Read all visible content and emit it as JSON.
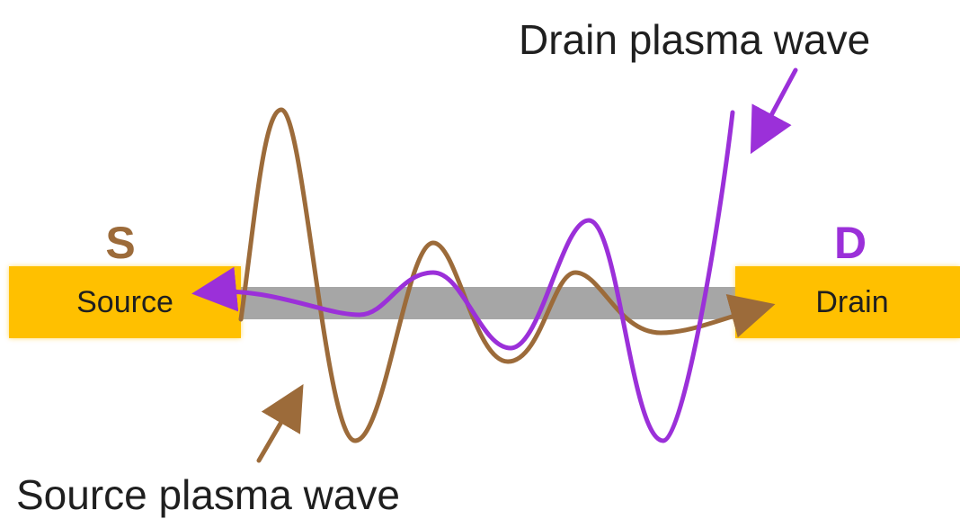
{
  "labels": {
    "drain_wave": "Drain plasma wave",
    "source_wave": "Source plasma wave",
    "source_letter": "S",
    "drain_letter": "D",
    "source_box": "Source",
    "drain_box": "Drain"
  },
  "colors": {
    "contact": "#ffc000",
    "channel": "#a6a6a6",
    "source_wave": "#9c6b3a",
    "drain_wave": "#9b30d9",
    "text": "#1f1f1f"
  }
}
